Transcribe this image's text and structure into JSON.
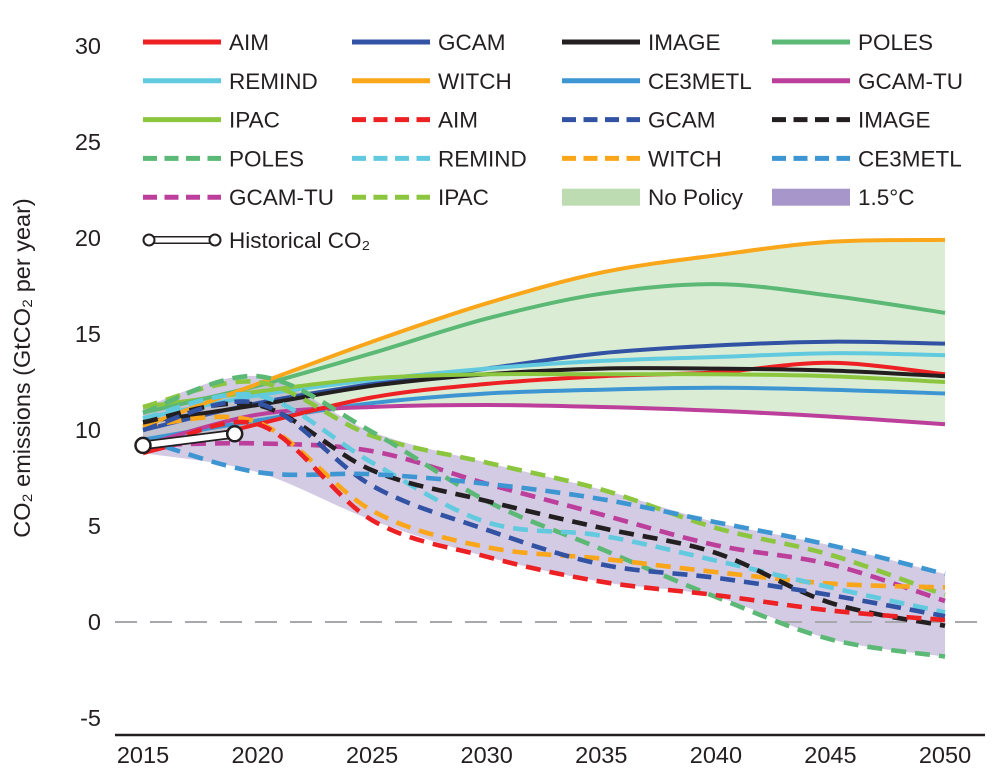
{
  "chart_data": {
    "type": "line",
    "title": "",
    "xlabel": "",
    "ylabel": "CO₂ emissions (GtCO₂ per year)",
    "x": [
      2015,
      2020,
      2025,
      2030,
      2035,
      2040,
      2045,
      2050
    ],
    "xticks": [
      "2015",
      "2020",
      "2025",
      "2030",
      "2035",
      "2040",
      "2045",
      "2050"
    ],
    "yticks": [
      30,
      25,
      20,
      15,
      10,
      5,
      0,
      -5
    ],
    "ylim": [
      -5,
      30
    ],
    "grid": false,
    "zero_line": {
      "value": 0,
      "style": "dashed",
      "color": "#a6a8ab"
    },
    "legend_position": "upper-left-inside",
    "scenarios": [
      {
        "name": "No Policy",
        "line_style": "solid",
        "fill": "#bedcb2",
        "fill_opacity": 0.55
      },
      {
        "name": "1.5°C",
        "line_style": "dashed",
        "fill": "#a796ca",
        "fill_opacity": 0.5
      }
    ],
    "series": [
      {
        "name": "CE3METL",
        "scenario": "No Policy",
        "style": "solid",
        "color": "#3d96d2",
        "values": [
          9.5,
          10.5,
          11.4,
          11.9,
          12.1,
          12.2,
          12.1,
          11.9
        ]
      },
      {
        "name": "GCAM-TU",
        "scenario": "No Policy",
        "style": "solid",
        "color": "#bc3f9b",
        "values": [
          9.2,
          10.8,
          11.2,
          11.3,
          11.2,
          11.0,
          10.7,
          10.3
        ]
      },
      {
        "name": "GCAM",
        "scenario": "No Policy",
        "style": "solid",
        "color": "#3253a4",
        "values": [
          10.0,
          11.4,
          12.4,
          13.2,
          14.0,
          14.4,
          14.6,
          14.5
        ]
      },
      {
        "name": "REMIND",
        "scenario": "No Policy",
        "style": "solid",
        "color": "#61cade",
        "values": [
          10.6,
          11.8,
          12.6,
          13.2,
          13.6,
          13.8,
          14.0,
          13.9
        ]
      },
      {
        "name": "AIM",
        "scenario": "No Policy",
        "style": "solid",
        "color": "#ed2024",
        "values": [
          8.8,
          10.3,
          11.7,
          12.4,
          12.8,
          13.0,
          13.5,
          12.9
        ]
      },
      {
        "name": "IMAGE",
        "scenario": "No Policy",
        "style": "solid",
        "color": "#231f20",
        "values": [
          10.4,
          11.3,
          12.3,
          12.9,
          13.2,
          13.2,
          13.1,
          12.8
        ]
      },
      {
        "name": "IPAC",
        "scenario": "No Policy",
        "style": "solid",
        "color": "#8cc63f",
        "values": [
          11.2,
          12.0,
          12.7,
          12.9,
          12.9,
          12.9,
          12.8,
          12.5
        ]
      },
      {
        "name": "POLES",
        "scenario": "No Policy",
        "style": "solid",
        "color": "#5bb975",
        "values": [
          10.9,
          12.3,
          14.0,
          15.8,
          17.1,
          17.6,
          17.0,
          16.1
        ]
      },
      {
        "name": "WITCH",
        "scenario": "No Policy",
        "style": "solid",
        "color": "#f9a61a",
        "values": [
          10.2,
          12.4,
          14.6,
          16.6,
          18.2,
          19.1,
          19.8,
          19.9
        ]
      },
      {
        "name": "GCAM-TU",
        "scenario": "1.5°C",
        "style": "dashed",
        "color": "#bc3f9b",
        "values": [
          9.2,
          9.3,
          8.9,
          7.2,
          5.6,
          4.0,
          3.0,
          1.1
        ]
      },
      {
        "name": "IPAC",
        "scenario": "1.5°C",
        "style": "dashed",
        "color": "#8cc63f",
        "values": [
          11.2,
          12.5,
          9.7,
          8.3,
          6.9,
          4.9,
          3.5,
          1.4
        ]
      },
      {
        "name": "POLES",
        "scenario": "1.5°C",
        "style": "dashed",
        "color": "#5bb975",
        "values": [
          10.9,
          12.8,
          9.9,
          6.3,
          3.8,
          1.3,
          -0.9,
          -1.8
        ]
      },
      {
        "name": "WITCH",
        "scenario": "1.5°C",
        "style": "dashed",
        "color": "#f9a61a",
        "values": [
          10.2,
          10.4,
          5.8,
          3.9,
          3.3,
          2.6,
          2.0,
          1.8
        ]
      },
      {
        "name": "REMIND",
        "scenario": "1.5°C",
        "style": "dashed",
        "color": "#61cade",
        "values": [
          10.6,
          11.8,
          8.3,
          5.2,
          4.5,
          3.2,
          1.8,
          0.5
        ]
      },
      {
        "name": "IMAGE",
        "scenario": "1.5°C",
        "style": "dashed",
        "color": "#231f20",
        "values": [
          10.4,
          11.3,
          7.9,
          6.3,
          4.9,
          3.6,
          1.0,
          -0.2
        ]
      },
      {
        "name": "GCAM",
        "scenario": "1.5°C",
        "style": "dashed",
        "color": "#3253a4",
        "values": [
          10.0,
          11.4,
          7.1,
          4.8,
          3.0,
          2.3,
          1.4,
          0.3
        ]
      },
      {
        "name": "CE3METL",
        "scenario": "1.5°C",
        "style": "dashed",
        "color": "#3d96d2",
        "values": [
          9.5,
          7.8,
          7.7,
          7.2,
          6.4,
          5.2,
          4.0,
          2.5
        ]
      },
      {
        "name": "AIM",
        "scenario": "1.5°C",
        "style": "dashed",
        "color": "#ed2024",
        "values": [
          8.8,
          10.3,
          5.3,
          3.4,
          2.1,
          1.4,
          0.6,
          0.1
        ]
      }
    ],
    "historical": {
      "label": "Historical CO₂",
      "x": [
        2015,
        2019
      ],
      "values": [
        9.2,
        9.8
      ]
    }
  },
  "legend": {
    "items": [
      {
        "label": "AIM",
        "style": "solid",
        "color": "#ed2024",
        "col": 0,
        "row": 0
      },
      {
        "label": "GCAM",
        "style": "solid",
        "color": "#3253a4",
        "col": 1,
        "row": 0
      },
      {
        "label": "IMAGE",
        "style": "solid",
        "color": "#231f20",
        "col": 2,
        "row": 0
      },
      {
        "label": "POLES",
        "style": "solid",
        "color": "#5bb975",
        "col": 3,
        "row": 0
      },
      {
        "label": "REMIND",
        "style": "solid",
        "color": "#61cade",
        "col": 0,
        "row": 1
      },
      {
        "label": "WITCH",
        "style": "solid",
        "color": "#f9a61a",
        "col": 1,
        "row": 1
      },
      {
        "label": "CE3METL",
        "style": "solid",
        "color": "#3d96d2",
        "col": 2,
        "row": 1
      },
      {
        "label": "GCAM-TU",
        "style": "solid",
        "color": "#bc3f9b",
        "col": 3,
        "row": 1
      },
      {
        "label": "IPAC",
        "style": "solid",
        "color": "#8cc63f",
        "col": 0,
        "row": 2
      },
      {
        "label": "AIM",
        "style": "dashed",
        "color": "#ed2024",
        "col": 1,
        "row": 2
      },
      {
        "label": "GCAM",
        "style": "dashed",
        "color": "#3253a4",
        "col": 2,
        "row": 2
      },
      {
        "label": "IMAGE",
        "style": "dashed",
        "color": "#231f20",
        "col": 3,
        "row": 2
      },
      {
        "label": "POLES",
        "style": "dashed",
        "color": "#5bb975",
        "col": 0,
        "row": 3
      },
      {
        "label": "REMIND",
        "style": "dashed",
        "color": "#61cade",
        "col": 1,
        "row": 3
      },
      {
        "label": "WITCH",
        "style": "dashed",
        "color": "#f9a61a",
        "col": 2,
        "row": 3
      },
      {
        "label": "CE3METL",
        "style": "dashed",
        "color": "#3d96d2",
        "col": 3,
        "row": 3
      },
      {
        "label": "GCAM-TU",
        "style": "dashed",
        "color": "#bc3f9b",
        "col": 0,
        "row": 4
      },
      {
        "label": "IPAC",
        "style": "dashed",
        "color": "#8cc63f",
        "col": 1,
        "row": 4
      },
      {
        "label": "No Policy",
        "style": "patch",
        "color": "#bedcb2",
        "col": 2,
        "row": 4
      },
      {
        "label": "1.5°C",
        "style": "patch",
        "color": "#a796ca",
        "col": 3,
        "row": 4
      },
      {
        "label": "Historical CO₂",
        "style": "historical",
        "color": "#ffffff",
        "col": 0,
        "row": 5
      }
    ]
  }
}
